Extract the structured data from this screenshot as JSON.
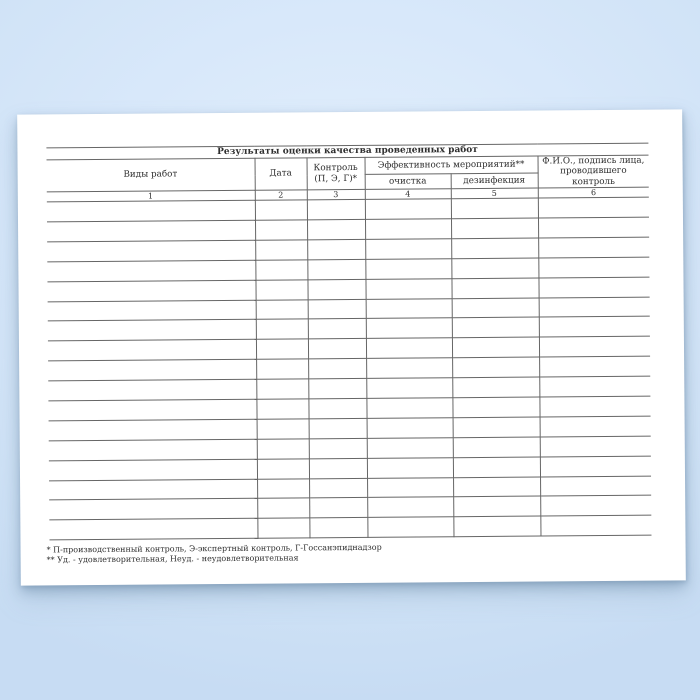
{
  "document": {
    "table": {
      "title": "Результаты оценки качества проведенных работ",
      "headers": {
        "vidy_rabot": "Виды работ",
        "data": "Дата",
        "kontrol_line1": "Контроль",
        "kontrol_line2": "(П, Э, Г)*",
        "effektivnost": "Эффективность мероприятий**",
        "ochistka": "очистка",
        "dezinfekciya": "дезинфекция",
        "fio_line1": "Ф.И.О., подпись лица,",
        "fio_line2": "проводившего контроль"
      },
      "column_numbers": [
        "1",
        "2",
        "3",
        "4",
        "5",
        "6"
      ],
      "empty_row_count": 17,
      "column_count": 6
    },
    "footnotes": {
      "line1": "* П-производственный контроль, Э-экспертный контроль, Г-Госсанэпиднадзор",
      "line2": "** Уд. - удовлетворительная, Неуд. - неудовлетворительная"
    }
  },
  "colors": {
    "background_blue": "#d5e6f9",
    "paper": "#ffffff",
    "rule_gray": "#666666",
    "ink": "#2e2e2e"
  }
}
